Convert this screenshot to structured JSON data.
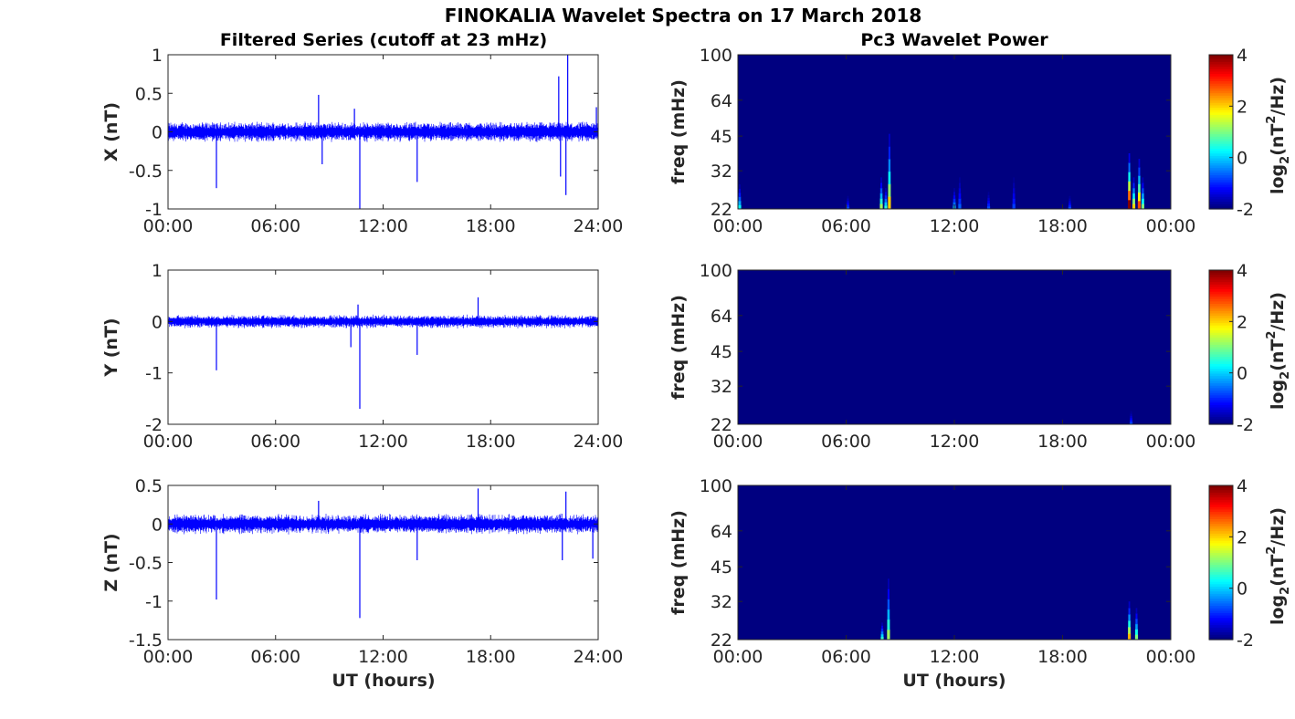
{
  "figure": {
    "title": "FINOKALIA Wavelet Spectra on 17 March 2018",
    "left_title": "Filtered Series (cutoff at 23 mHz)",
    "right_title": "Pc3 Wavelet Power",
    "xlabel": "UT (hours)",
    "colorbar_label": "log2(nT2/Hz)"
  },
  "chart_data": [
    {
      "type": "line",
      "component": "X",
      "ylabel": "X (nT)",
      "ylim": [
        -1,
        1
      ],
      "yticks": [
        "1",
        "0.5",
        "0",
        "-0.5",
        "-1"
      ],
      "yticks_values": [
        1,
        0.5,
        0,
        -0.5,
        -1
      ],
      "xticks": [
        "00:00",
        "06:00",
        "12:00",
        "18:00",
        "24:00"
      ],
      "x_range_hours": [
        0,
        24
      ],
      "color": "#0000ff",
      "noise_band": 0.12,
      "spikes": [
        {
          "t": 2.7,
          "v": -0.73
        },
        {
          "t": 8.4,
          "v": 0.48
        },
        {
          "t": 8.6,
          "v": -0.42
        },
        {
          "t": 10.7,
          "v": -1.0
        },
        {
          "t": 10.4,
          "v": 0.3
        },
        {
          "t": 13.9,
          "v": -0.65
        },
        {
          "t": 21.8,
          "v": 0.72
        },
        {
          "t": 22.2,
          "v": -0.82
        },
        {
          "t": 22.3,
          "v": 1.0
        },
        {
          "t": 21.9,
          "v": -0.58
        },
        {
          "t": 23.9,
          "v": 0.32
        }
      ]
    },
    {
      "type": "line",
      "component": "Y",
      "ylabel": "Y (nT)",
      "ylim": [
        -2,
        1
      ],
      "yticks": [
        "1",
        "0",
        "-1",
        "-2"
      ],
      "yticks_values": [
        1,
        0,
        -1,
        -2
      ],
      "xticks": [
        "00:00",
        "06:00",
        "12:00",
        "18:00",
        "24:00"
      ],
      "x_range_hours": [
        0,
        24
      ],
      "color": "#0000ff",
      "noise_band": 0.12,
      "spikes": [
        {
          "t": 2.7,
          "v": -0.95
        },
        {
          "t": 10.7,
          "v": -1.7
        },
        {
          "t": 10.6,
          "v": 0.33
        },
        {
          "t": 13.9,
          "v": -0.65
        },
        {
          "t": 17.3,
          "v": 0.47
        },
        {
          "t": 10.2,
          "v": -0.5
        }
      ]
    },
    {
      "type": "line",
      "component": "Z",
      "ylabel": "Z (nT)",
      "ylim": [
        -1.5,
        0.5
      ],
      "yticks": [
        "0.5",
        "0",
        "-0.5",
        "-1",
        "-1.5"
      ],
      "yticks_values": [
        0.5,
        0,
        -0.5,
        -1,
        -1.5
      ],
      "xticks": [
        "00:00",
        "06:00",
        "12:00",
        "18:00",
        "24:00"
      ],
      "x_range_hours": [
        0,
        24
      ],
      "color": "#0000ff",
      "noise_band": 0.12,
      "spikes": [
        {
          "t": 2.7,
          "v": -0.98
        },
        {
          "t": 10.7,
          "v": -1.22
        },
        {
          "t": 8.4,
          "v": 0.3
        },
        {
          "t": 13.9,
          "v": -0.47
        },
        {
          "t": 17.3,
          "v": 0.46
        },
        {
          "t": 22.2,
          "v": 0.42
        },
        {
          "t": 22.0,
          "v": -0.47
        },
        {
          "t": 23.7,
          "v": -0.45
        }
      ]
    },
    {
      "type": "heatmap",
      "component": "X",
      "ylabel": "freq (mHz)",
      "ylim_mhz": [
        22,
        100
      ],
      "yscale": "log",
      "yticks": [
        "100",
        "64",
        "45",
        "32",
        "22"
      ],
      "yticks_values": [
        100,
        64,
        45,
        32,
        22
      ],
      "xticks": [
        "00:00",
        "06:00",
        "12:00",
        "18:00",
        "00:00"
      ],
      "x_range_hours": [
        0,
        24
      ],
      "background_log2": -2,
      "colorbar_ticks": [
        "4",
        "2",
        "0",
        "-2"
      ],
      "clim": [
        -2,
        4
      ],
      "hotspots": [
        {
          "t": 0.1,
          "fmax": 28,
          "peak": 0.3
        },
        {
          "t": 6.1,
          "fmax": 25,
          "peak": -0.8
        },
        {
          "t": 7.95,
          "fmax": 30,
          "peak": 1.2
        },
        {
          "t": 8.4,
          "fmax": 46,
          "peak": 2.0
        },
        {
          "t": 8.2,
          "fmax": 27,
          "peak": 0.5
        },
        {
          "t": 12.0,
          "fmax": 27,
          "peak": -0.2
        },
        {
          "t": 12.3,
          "fmax": 30,
          "peak": -0.7
        },
        {
          "t": 13.9,
          "fmax": 26,
          "peak": -0.8
        },
        {
          "t": 15.3,
          "fmax": 30,
          "peak": -0.9
        },
        {
          "t": 18.4,
          "fmax": 25,
          "peak": -0.8
        },
        {
          "t": 21.7,
          "fmax": 38,
          "peak": 4.0
        },
        {
          "t": 21.95,
          "fmax": 30,
          "peak": 2.0
        },
        {
          "t": 22.25,
          "fmax": 36,
          "peak": 2.8
        },
        {
          "t": 22.45,
          "fmax": 30,
          "peak": 1.0
        }
      ]
    },
    {
      "type": "heatmap",
      "component": "Y",
      "ylabel": "freq (mHz)",
      "ylim_mhz": [
        22,
        100
      ],
      "yscale": "log",
      "yticks": [
        "100",
        "64",
        "45",
        "32",
        "22"
      ],
      "yticks_values": [
        100,
        64,
        45,
        32,
        22
      ],
      "xticks": [
        "00:00",
        "06:00",
        "12:00",
        "18:00",
        "00:00"
      ],
      "x_range_hours": [
        0,
        24
      ],
      "background_log2": -2,
      "colorbar_ticks": [
        "4",
        "2",
        "0",
        "-2"
      ],
      "clim": [
        -2,
        4
      ],
      "hotspots": [
        {
          "t": 21.8,
          "fmax": 25,
          "peak": -0.8
        }
      ]
    },
    {
      "type": "heatmap",
      "component": "Z",
      "ylabel": "freq (mHz)",
      "ylim_mhz": [
        22,
        100
      ],
      "yscale": "log",
      "yticks": [
        "100",
        "64",
        "45",
        "32",
        "22"
      ],
      "yticks_values": [
        100,
        64,
        45,
        32,
        22
      ],
      "xticks": [
        "00:00",
        "06:00",
        "12:00",
        "18:00",
        "00:00"
      ],
      "x_range_hours": [
        0,
        24
      ],
      "background_log2": -2,
      "colorbar_ticks": [
        "4",
        "2",
        "0",
        "-2"
      ],
      "clim": [
        -2,
        4
      ],
      "hotspots": [
        {
          "t": 8.0,
          "fmax": 26,
          "peak": 0.6
        },
        {
          "t": 8.35,
          "fmax": 40,
          "peak": 1.2
        },
        {
          "t": 21.7,
          "fmax": 32,
          "peak": 2.2
        },
        {
          "t": 22.1,
          "fmax": 30,
          "peak": 1.0
        }
      ]
    }
  ]
}
